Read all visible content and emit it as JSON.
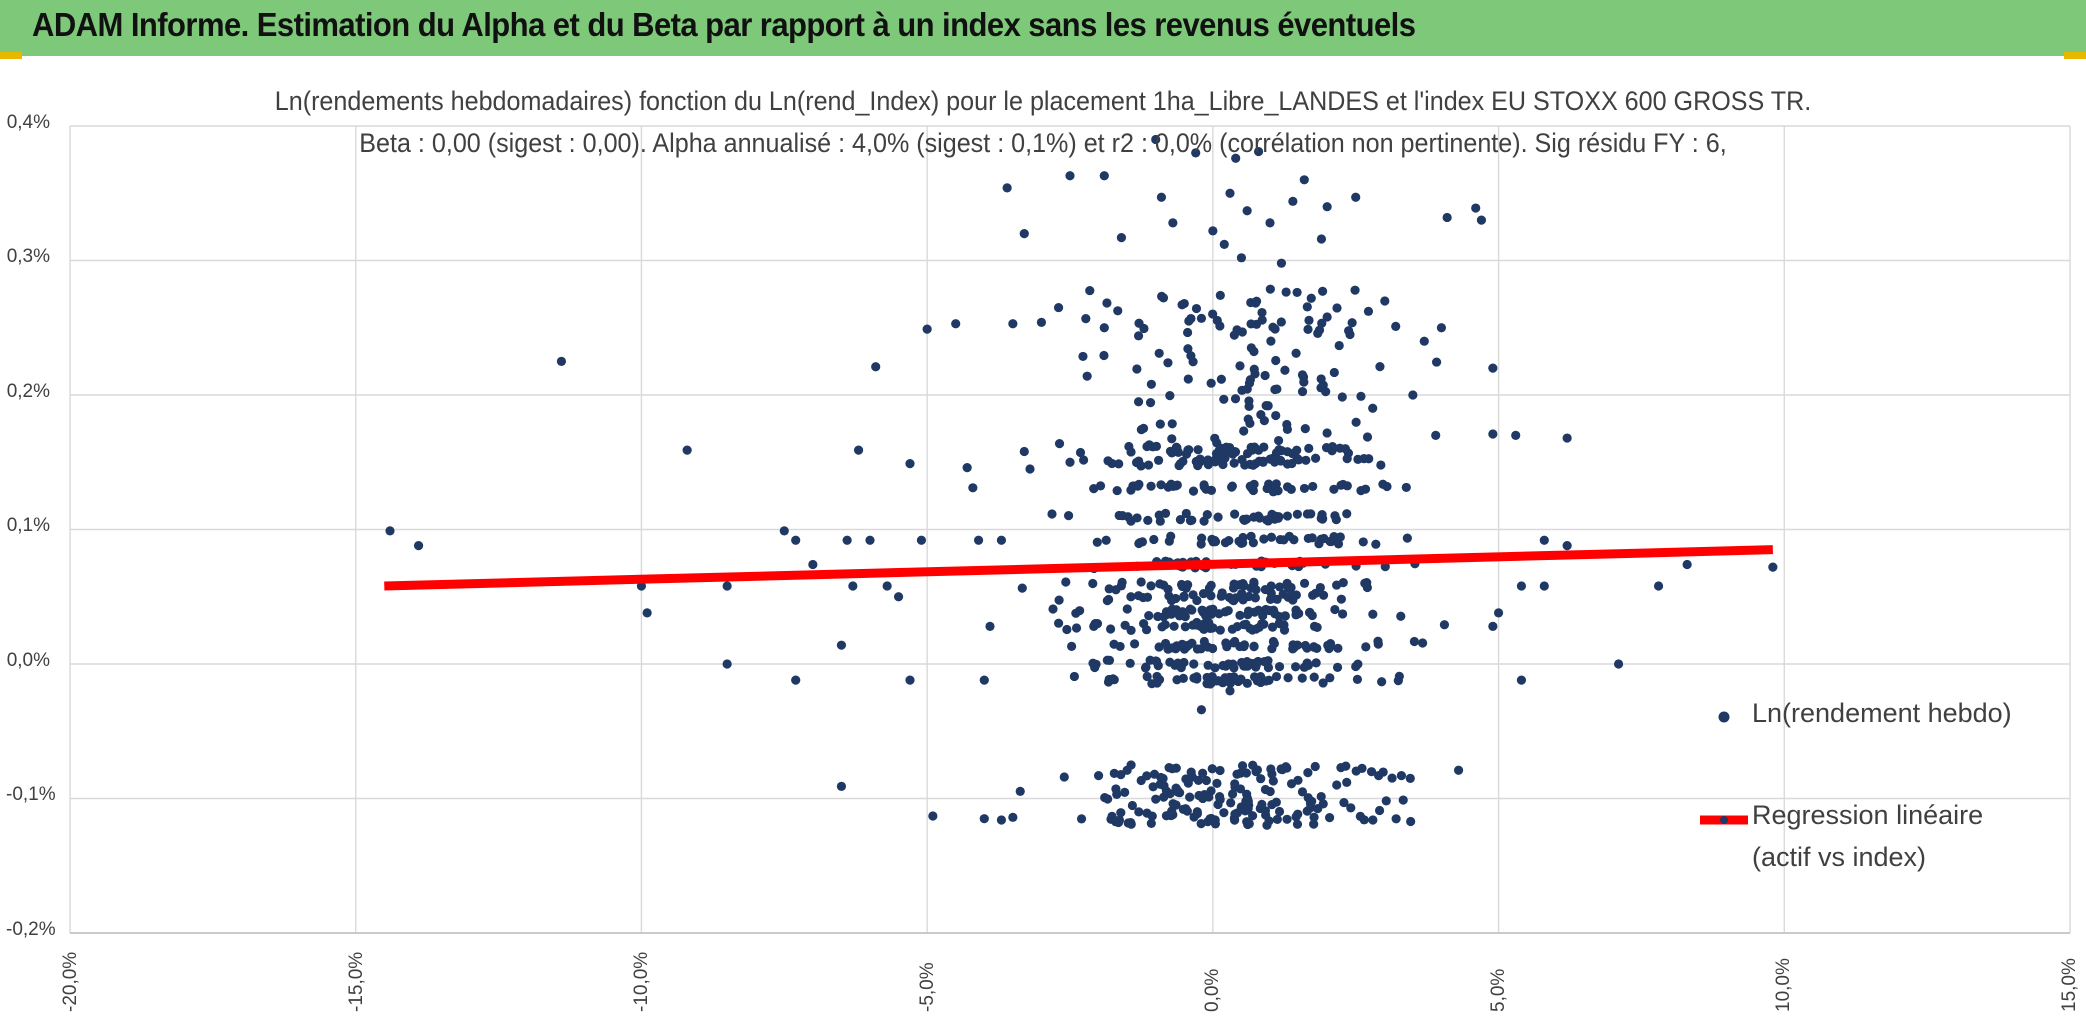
{
  "header": {
    "title": "ADAM Informe. Estimation du Alpha et du Beta par rapport à un index sans les revenus éventuels"
  },
  "colors": {
    "header_bg": "#7ec87a",
    "points": "#1f3864",
    "regression": "#ff0000",
    "grid": "#d9d9d9",
    "text": "#404040"
  },
  "chart_data": {
    "type": "scatter",
    "title": "Ln(rendements hebdomadaires) fonction du Ln(rend_Index) pour le placement 1ha_Libre_LANDES et l'index EU STOXX 600 GROSS TR.",
    "subtitle": "Beta : 0,00 (sigest : 0,00). Alpha annualisé : 4,0% (sigest : 0,1%) et r2 : 0,0% (corrélation non pertinente). Sig résidu FY : 6,",
    "xlim": [
      -20,
      15
    ],
    "ylim": [
      -0.2,
      0.4
    ],
    "xticks": [
      -20,
      -15,
      -10,
      -5,
      0,
      5,
      10,
      15
    ],
    "yticks": [
      -0.2,
      -0.1,
      0.0,
      0.1,
      0.2,
      0.3,
      0.4
    ],
    "x_tick_labels": [
      "-20,0%",
      "-15,0%",
      "-10,0%",
      "-5,0%",
      "0,0%",
      "5,0%",
      "10,0%",
      "15,0%"
    ],
    "y_tick_labels": [
      "-0,2%",
      "-0,1%",
      "0,0%",
      "0,1%",
      "0,2%",
      "0,3%",
      "0,4%"
    ],
    "legend": {
      "position": "right",
      "series_label": "Ln(rendement hebdo)",
      "regression_label_line1": "Regression linéaire",
      "regression_label_line2": "(actif vs index)"
    },
    "series": [
      {
        "name": "Ln(rendement hebdo)",
        "points": [
          [
            -14.4,
            0.099
          ],
          [
            -13.9,
            0.088
          ],
          [
            -11.4,
            0.225
          ],
          [
            -10.0,
            0.058
          ],
          [
            -9.9,
            0.038
          ],
          [
            -9.2,
            0.159
          ],
          [
            -8.5,
            0.058
          ],
          [
            -8.5,
            0.0
          ],
          [
            -7.5,
            0.099
          ],
          [
            -7.3,
            0.092
          ],
          [
            -7.3,
            -0.012
          ],
          [
            -7.0,
            0.074
          ],
          [
            -6.4,
            0.092
          ],
          [
            -6.5,
            0.014
          ],
          [
            -6.5,
            -0.091
          ],
          [
            -6.3,
            0.058
          ],
          [
            -6.2,
            0.159
          ],
          [
            -6.0,
            0.092
          ],
          [
            -5.9,
            0.221
          ],
          [
            -5.7,
            0.058
          ],
          [
            -5.5,
            0.05
          ],
          [
            -5.3,
            0.149
          ],
          [
            -5.3,
            -0.012
          ],
          [
            -5.1,
            0.092
          ],
          [
            -5.0,
            0.249
          ],
          [
            -4.9,
            -0.113
          ],
          [
            -4.5,
            0.253
          ],
          [
            -4.3,
            0.146
          ],
          [
            -4.2,
            0.131
          ],
          [
            -4.1,
            0.092
          ],
          [
            -4.0,
            -0.012
          ],
          [
            -3.9,
            0.028
          ],
          [
            -3.7,
            0.092
          ],
          [
            -3.6,
            0.354
          ],
          [
            -3.5,
            0.253
          ],
          [
            -3.3,
            0.32
          ],
          [
            -3.3,
            0.158
          ],
          [
            -3.2,
            0.145
          ],
          [
            -3.0,
            0.254
          ],
          [
            -2.7,
            0.265
          ],
          [
            -2.5,
            0.363
          ],
          [
            -2.5,
            0.15
          ],
          [
            -2.2,
            0.214
          ],
          [
            -1.9,
            0.363
          ],
          [
            -1.9,
            0.25
          ],
          [
            -1.6,
            0.317
          ],
          [
            -1.3,
            0.244
          ],
          [
            -1.3,
            0.195
          ],
          [
            -1.0,
            0.39
          ],
          [
            -0.9,
            0.347
          ],
          [
            -0.7,
            0.328
          ],
          [
            -0.5,
            0.268
          ],
          [
            -0.3,
            0.38
          ],
          [
            -0.2,
            0.257
          ],
          [
            0.0,
            0.322
          ],
          [
            0.2,
            0.312
          ],
          [
            0.3,
            0.35
          ],
          [
            0.4,
            0.376
          ],
          [
            0.5,
            0.302
          ],
          [
            0.6,
            0.337
          ],
          [
            0.8,
            0.381
          ],
          [
            1.0,
            0.328
          ],
          [
            1.2,
            0.298
          ],
          [
            1.4,
            0.344
          ],
          [
            1.6,
            0.36
          ],
          [
            2.0,
            0.34
          ],
          [
            2.5,
            0.347
          ],
          [
            1.9,
            0.316
          ],
          [
            2.0,
            0.258
          ],
          [
            2.4,
            0.245
          ],
          [
            3.2,
            0.251
          ],
          [
            3.5,
            0.2
          ],
          [
            3.7,
            0.24
          ],
          [
            3.9,
            0.17
          ],
          [
            4.0,
            0.25
          ],
          [
            4.1,
            0.332
          ],
          [
            4.6,
            0.339
          ],
          [
            4.7,
            0.33
          ],
          [
            4.9,
            0.22
          ],
          [
            4.9,
            0.171
          ],
          [
            5.3,
            0.17
          ],
          [
            6.2,
            0.168
          ],
          [
            5.8,
            0.092
          ],
          [
            6.2,
            0.088
          ],
          [
            5.0,
            0.038
          ],
          [
            4.9,
            0.028
          ],
          [
            5.4,
            0.058
          ],
          [
            5.8,
            0.058
          ],
          [
            5.4,
            -0.012
          ],
          [
            7.1,
            0.0
          ],
          [
            7.8,
            0.058
          ],
          [
            8.3,
            0.074
          ],
          [
            9.8,
            0.072
          ],
          [
            4.3,
            -0.079
          ],
          [
            3.3,
            -0.083
          ],
          [
            2.8,
            -0.116
          ],
          [
            -4.0,
            -0.115
          ],
          [
            -3.7,
            -0.116
          ],
          [
            -3.5,
            -0.114
          ],
          [
            -2.6,
            -0.084
          ],
          [
            -2.0,
            -0.083
          ],
          [
            -1.5,
            -0.079
          ],
          [
            -0.2,
            -0.034
          ],
          [
            0.3,
            -0.02
          ]
        ]
      }
    ],
    "regression": {
      "name": "Regression linéaire (actif vs index)",
      "x": [
        -14.5,
        9.8
      ],
      "y": [
        0.058,
        0.085
      ]
    }
  }
}
